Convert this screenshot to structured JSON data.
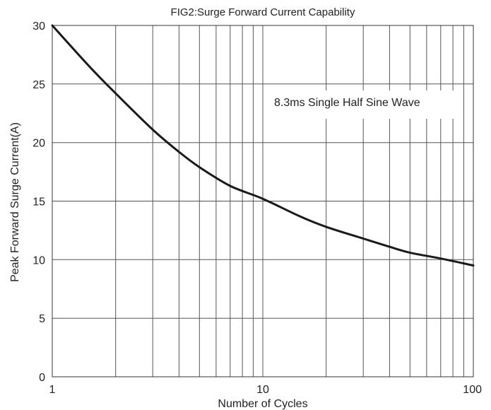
{
  "chart_data": {
    "type": "line",
    "title": "FIG2:Surge Forward Current Capability",
    "xlabel": "Number of Cycles",
    "ylabel": "Peak Forward Surge Current(A)",
    "x_scale": "log",
    "xlim": [
      1,
      100
    ],
    "ylim": [
      0,
      30
    ],
    "x_ticks": [
      1,
      10,
      100
    ],
    "y_ticks": [
      0,
      5,
      10,
      15,
      20,
      25,
      30
    ],
    "grid": true,
    "annotation": "8.3ms Single Half Sine Wave",
    "line_color": "#1a1a1a",
    "series": [
      {
        "x": [
          1,
          1.5,
          2,
          3,
          4,
          5,
          7,
          10,
          15,
          20,
          30,
          40,
          50,
          70,
          100
        ],
        "y": [
          30,
          26.5,
          24.2,
          21.1,
          19.2,
          17.9,
          16.3,
          15.2,
          13.7,
          12.8,
          11.8,
          11.1,
          10.6,
          10.1,
          9.5
        ]
      }
    ]
  }
}
